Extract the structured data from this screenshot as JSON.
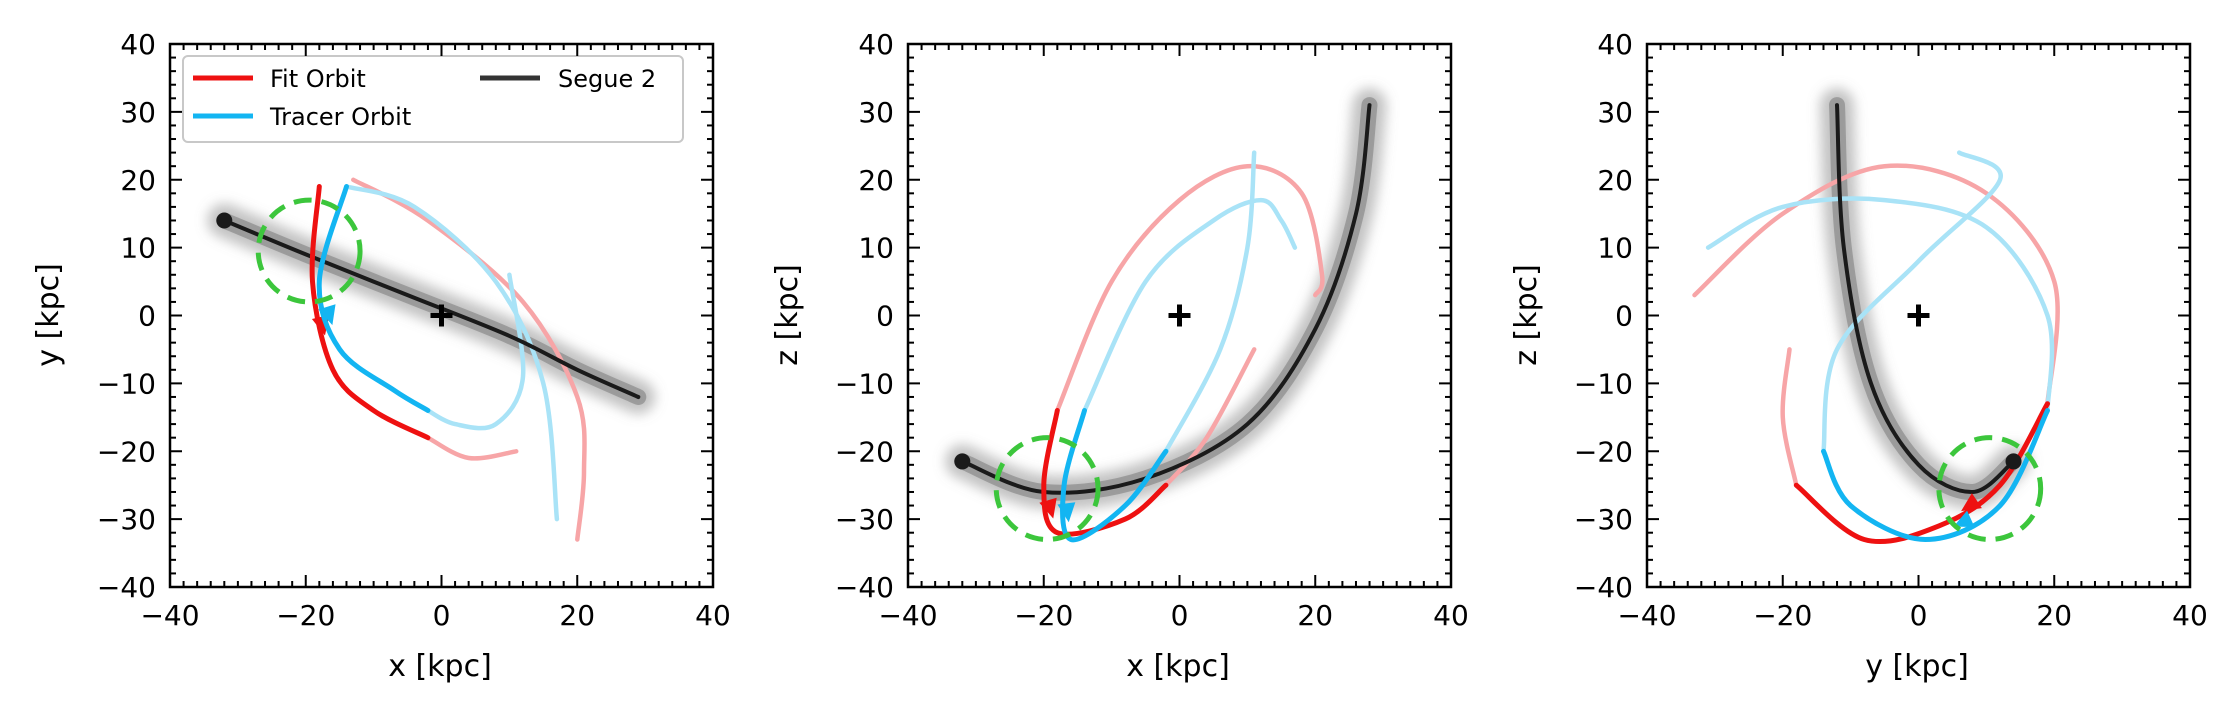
{
  "colors": {
    "fit_orbit": "#ee1111",
    "fit_orbit_faded": "#f7a5a7",
    "tracer_orbit": "#13b5f2",
    "tracer_orbit_faded": "#a9e3f7",
    "segue2": "#1a1a1a",
    "stream_shade": "#7a7a7a",
    "circle": "#3cc63c",
    "gc_marker": "#000000"
  },
  "legend": {
    "fit_orbit": "Fit Orbit",
    "tracer_orbit": "Tracer Orbit",
    "segue2": "Segue 2"
  },
  "chart_data": [
    {
      "type": "line",
      "xlabel": "x [kpc]",
      "ylabel": "y [kpc]",
      "xlim": [
        -40,
        40
      ],
      "ylim": [
        -40,
        40
      ],
      "ticks": [
        "−40",
        "−20",
        "0",
        "20",
        "40"
      ],
      "yticks": [
        "−40",
        "−30",
        "−20",
        "−10",
        "0",
        "10",
        "20",
        "30",
        "40"
      ],
      "legend": "top-left",
      "series": [
        {
          "name": "Segue 2",
          "x": [
            -32,
            -20,
            -5,
            10,
            20,
            29
          ],
          "y": [
            14,
            9,
            3,
            -3,
            -8,
            -12
          ]
        },
        {
          "name": "Fit Orbit",
          "x": [
            -18,
            -19,
            -16,
            -10,
            -2
          ],
          "y": [
            19,
            5,
            -8,
            -14,
            -18
          ]
        },
        {
          "name": "Tracer Orbit",
          "x": [
            -14,
            -18,
            -15,
            -7,
            -2
          ],
          "y": [
            19,
            5,
            -5,
            -11,
            -14
          ]
        }
      ],
      "faded_series": [
        {
          "orbit": "Fit Orbit",
          "x": [
            -13,
            -2,
            12,
            20,
            21,
            20
          ],
          "y": [
            20,
            14,
            2,
            -12,
            -23,
            -33
          ]
        },
        {
          "orbit": "Fit Orbit",
          "x": [
            -2,
            4,
            11
          ],
          "y": [
            -18,
            -21,
            -20
          ]
        },
        {
          "orbit": "Tracer Orbit",
          "x": [
            -14,
            -4,
            8,
            15,
            17
          ],
          "y": [
            19,
            16,
            5,
            -10,
            -30
          ]
        },
        {
          "orbit": "Tracer Orbit",
          "x": [
            -2,
            2,
            8,
            12,
            10
          ],
          "y": [
            -14,
            -16,
            -16,
            -9,
            6
          ]
        }
      ],
      "markers": {
        "galactic_center": [
          0,
          0
        ],
        "progenitor": [
          -32,
          14
        ],
        "circle_center": [
          -19.5,
          9.5
        ],
        "circle_radius": 7.5
      }
    },
    {
      "type": "line",
      "xlabel": "x [kpc]",
      "ylabel": "z [kpc]",
      "xlim": [
        -40,
        40
      ],
      "ylim": [
        -40,
        40
      ],
      "ticks": [
        "−40",
        "−20",
        "0",
        "20",
        "40"
      ],
      "yticks": [
        "−40",
        "−30",
        "−20",
        "−10",
        "0",
        "10",
        "20",
        "30",
        "40"
      ],
      "series": [
        {
          "name": "Segue 2",
          "x": [
            -32,
            -20,
            -5,
            10,
            20,
            26,
            28
          ],
          "y": [
            -21.5,
            -26,
            -24,
            -16,
            -2,
            15,
            31
          ]
        },
        {
          "name": "Fit Orbit",
          "x": [
            -18,
            -20,
            -18,
            -8,
            -2
          ],
          "y": [
            -14,
            -25,
            -32,
            -30,
            -25
          ]
        },
        {
          "name": "Tracer Orbit",
          "x": [
            -14,
            -17,
            -16,
            -8,
            -2
          ],
          "y": [
            -14,
            -25,
            -33,
            -28,
            -20
          ]
        }
      ],
      "faded_series": [
        {
          "orbit": "Fit Orbit",
          "x": [
            -18,
            -10,
            0,
            10,
            18,
            21,
            20
          ],
          "y": [
            -14,
            5,
            17,
            22,
            18,
            6,
            3
          ]
        },
        {
          "orbit": "Fit Orbit",
          "x": [
            -2,
            4,
            11
          ],
          "y": [
            -25,
            -18,
            -5
          ]
        },
        {
          "orbit": "Tracer Orbit",
          "x": [
            -14,
            -5,
            5,
            12,
            15,
            17
          ],
          "y": [
            -14,
            5,
            14,
            17,
            14,
            10
          ]
        },
        {
          "orbit": "Tracer Orbit",
          "x": [
            -2,
            6,
            10,
            11
          ],
          "y": [
            -20,
            -5,
            10,
            24
          ]
        }
      ],
      "markers": {
        "galactic_center": [
          0,
          0
        ],
        "progenitor": [
          -32,
          -21.5
        ],
        "circle_center": [
          -19.5,
          -25.5
        ],
        "circle_radius": 7.5
      }
    },
    {
      "type": "line",
      "xlabel": "y [kpc]",
      "ylabel": "z [kpc]",
      "xlim": [
        -40,
        40
      ],
      "ylim": [
        -40,
        40
      ],
      "ticks": [
        "−40",
        "−20",
        "0",
        "20",
        "40"
      ],
      "yticks": [
        "−40",
        "−30",
        "−20",
        "−10",
        "0",
        "10",
        "20",
        "30",
        "40"
      ],
      "series": [
        {
          "name": "Segue 2",
          "x": [
            -12,
            -11,
            -7,
            0,
            8,
            14
          ],
          "y": [
            31,
            10,
            -10,
            -22,
            -26,
            -21.5
          ]
        },
        {
          "name": "Fit Orbit",
          "x": [
            19,
            12,
            3,
            -8,
            -18
          ],
          "y": [
            -13,
            -25,
            -31,
            -33,
            -25
          ]
        },
        {
          "name": "Tracer Orbit",
          "x": [
            19,
            12,
            1,
            -10,
            -14
          ],
          "y": [
            -14,
            -28,
            -33,
            -28,
            -20
          ]
        }
      ],
      "faded_series": [
        {
          "orbit": "Fit Orbit",
          "x": [
            -33,
            -20,
            -5,
            10,
            20,
            19
          ],
          "y": [
            3,
            15,
            22,
            18,
            5,
            -13
          ]
        },
        {
          "orbit": "Fit Orbit",
          "x": [
            -18,
            -20,
            -19
          ],
          "y": [
            -25,
            -15,
            -5
          ]
        },
        {
          "orbit": "Tracer Orbit",
          "x": [
            -31,
            -20,
            -5,
            10,
            19,
            19
          ],
          "y": [
            10,
            16,
            17,
            13,
            0,
            -14
          ]
        },
        {
          "orbit": "Tracer Orbit",
          "x": [
            -14,
            -12,
            0,
            12,
            6
          ],
          "y": [
            -20,
            -5,
            8,
            20,
            24
          ]
        }
      ],
      "markers": {
        "galactic_center": [
          0,
          0
        ],
        "progenitor": [
          14,
          -21.5
        ],
        "circle_center": [
          10.5,
          -25.5
        ],
        "circle_radius": 7.5
      }
    }
  ]
}
